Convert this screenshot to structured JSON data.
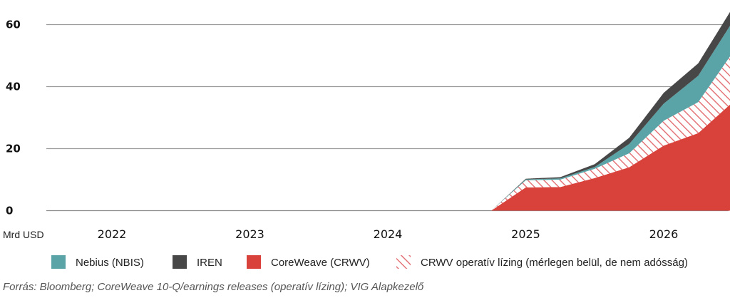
{
  "chart_data": {
    "type": "area",
    "stacked": true,
    "ylabel": "Mrd USD",
    "ylim": [
      0,
      65
    ],
    "yticks": [
      0,
      20,
      40,
      60
    ],
    "x_tick_labels": [
      "2022",
      "2023",
      "2024",
      "2025",
      "2026"
    ],
    "x": [
      2024.75,
      2025.0,
      2025.25,
      2025.5,
      2025.75,
      2026.0,
      2026.25,
      2026.5
    ],
    "grid": "horizontal",
    "legend_position": "bottom",
    "series": [
      {
        "name": "CoreWeave (CRWV)",
        "color": "#d9423b",
        "pattern": "solid",
        "values": [
          0,
          7.5,
          7.6,
          10.5,
          14,
          21,
          25,
          35
        ]
      },
      {
        "name": "CRWV operatív lízing (mérlegen belül, de nem adósság)",
        "color": "#e8a0a0",
        "pattern": "hatched",
        "values": [
          0,
          2.3,
          2.4,
          3,
          4.5,
          8,
          10,
          16
        ]
      },
      {
        "name": "Nebius (NBIS)",
        "color": "#5aa3a6",
        "pattern": "solid",
        "values": [
          0,
          0.3,
          0.4,
          0.6,
          3,
          5.5,
          8.5,
          10
        ]
      },
      {
        "name": "IREN",
        "color": "#474747",
        "pattern": "solid",
        "values": [
          0,
          0.2,
          0.4,
          0.9,
          2,
          3.5,
          4,
          4.5
        ]
      }
    ],
    "source": "Forrás: Bloomberg; CoreWeave 10-Q/earnings releases (operatív lízing); VIG Alapkezelő"
  }
}
